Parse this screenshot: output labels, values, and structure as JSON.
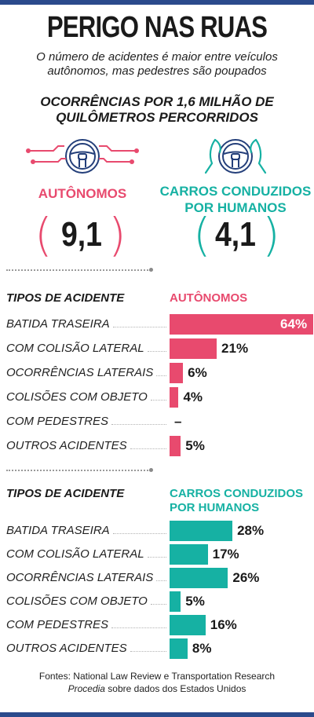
{
  "title": "PERIGO NAS RUAS",
  "subtitle": "O número de acidentes é maior entre veículos autônomos, mas pedestres são poupados",
  "measure": "OCORRÊNCIAS POR 1,6 MILHÃO DE QUILÔMETROS PERCORRIDOS",
  "colors": {
    "autonomous": "#e84a6e",
    "human": "#16b1a3",
    "frame": "#2b4a8c",
    "icon_line": "#243f7a"
  },
  "icons": {
    "autonomous": "steering-wheel-circuit-icon",
    "human": "steering-wheel-hands-icon"
  },
  "autonomous": {
    "label": "AUTÔNOMOS",
    "value": "9,1"
  },
  "human": {
    "label": "CARROS CONDUZIDOS POR HUMANOS",
    "value": "4,1"
  },
  "sections": [
    {
      "header": "TIPOS DE ACIDENTE",
      "series": "AUTÔNOMOS"
    },
    {
      "header": "TIPOS DE ACIDENTE",
      "series": "CARROS CONDUZIDOS POR HUMANOS"
    }
  ],
  "chart_data": [
    {
      "type": "bar",
      "categories": [
        "BATIDA TRASEIRA",
        "COM COLISÃO LATERAL",
        "OCORRÊNCIAS LATERAIS",
        "COLISÕES COM OBJETO",
        "COM PEDESTRES",
        "OUTROS ACIDENTES"
      ],
      "series": [
        {
          "name": "AUTÔNOMOS",
          "values": [
            64,
            21,
            6,
            4,
            null,
            5
          ]
        }
      ],
      "value_labels": [
        "64%",
        "21%",
        "6%",
        "4%",
        "–",
        "5%"
      ]
    },
    {
      "type": "bar",
      "categories": [
        "BATIDA TRASEIRA",
        "COM COLISÃO LATERAL",
        "OCORRÊNCIAS LATERAIS",
        "COLISÕES COM OBJETO",
        "COM PEDESTRES",
        "OUTROS ACIDENTES"
      ],
      "series": [
        {
          "name": "CARROS CONDUZIDOS POR HUMANOS",
          "values": [
            28,
            17,
            26,
            5,
            16,
            8
          ]
        }
      ],
      "value_labels": [
        "28%",
        "17%",
        "26%",
        "5%",
        "16%",
        "8%"
      ]
    }
  ],
  "footer": {
    "line1": "Fontes: National Law Review e Transportation Research",
    "line2_a": "Procedia ",
    "line2_b": "sobre dados dos Estados Unidos"
  }
}
